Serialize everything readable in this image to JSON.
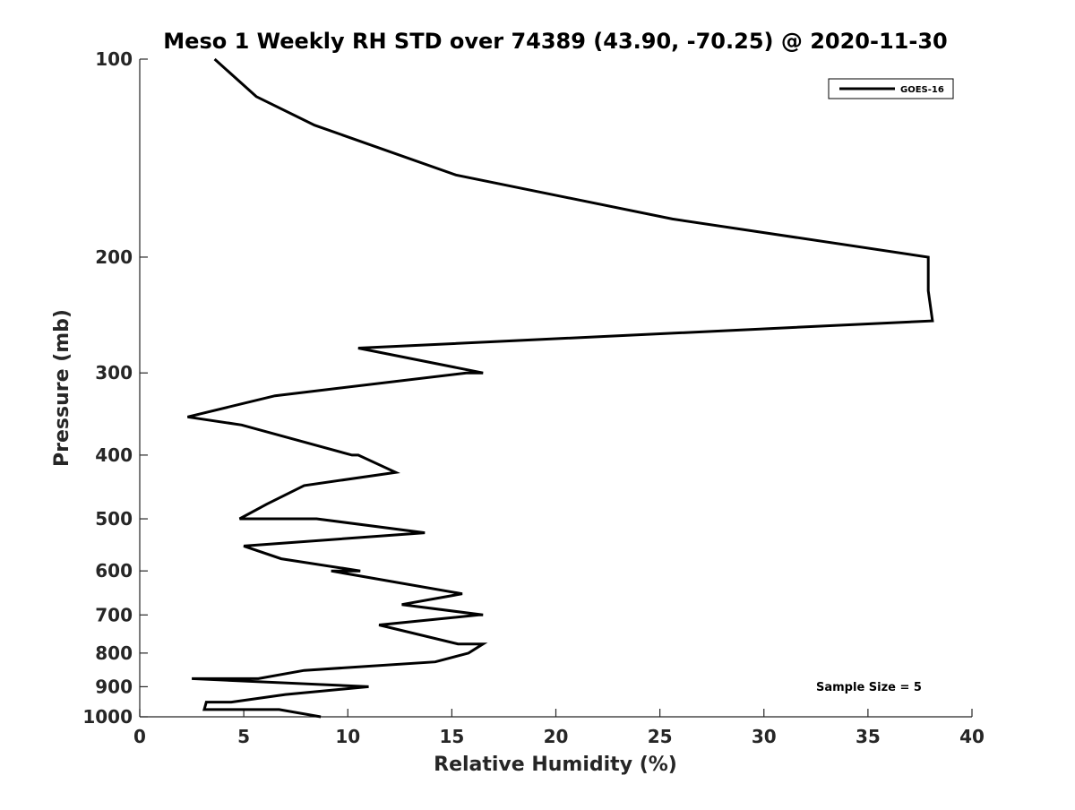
{
  "chart_data": {
    "type": "line",
    "title": "Meso 1 Weekly RH STD over 74389 (43.90, -70.25) @ 2020-11-30",
    "xlabel": "Relative Humidity (%)",
    "ylabel": "Pressure (mb)",
    "xlim": [
      0,
      40
    ],
    "ylim": [
      1000,
      100
    ],
    "y_scale": "log",
    "y_reversed": true,
    "x_ticks": [
      0,
      5,
      10,
      15,
      20,
      25,
      30,
      35,
      40
    ],
    "x_tick_labels": [
      "0",
      "5",
      "10",
      "15",
      "20",
      "25",
      "30",
      "35",
      "40"
    ],
    "y_ticks": [
      100,
      200,
      300,
      400,
      500,
      600,
      700,
      800,
      900,
      1000
    ],
    "y_tick_labels": [
      "100",
      "200",
      "300",
      "400",
      "500",
      "600",
      "700",
      "800",
      "900",
      "1000"
    ],
    "grid": false,
    "legend": {
      "position": "top-right",
      "entries": [
        "GOES-16"
      ]
    },
    "annotation": "Sample Size = 5",
    "series": [
      {
        "name": "GOES-16",
        "color": "#000000",
        "x": [
          3.6,
          5.6,
          8.4,
          15.2,
          25.6,
          37.9,
          37.9,
          38.1,
          10.5,
          16.5,
          15.7,
          6.5,
          2.3,
          4.9,
          10.2,
          10.5,
          12.3,
          7.9,
          6.1,
          4.8,
          8.5,
          13.7,
          5.0,
          6.8,
          10.6,
          9.2,
          15.5,
          12.6,
          16.5,
          16.3,
          11.5,
          15.3,
          16.5,
          15.8,
          14.2,
          7.9,
          5.7,
          2.5,
          11.0,
          7.0,
          4.4,
          3.2,
          3.1,
          6.7,
          8.7
        ],
        "y": [
          100,
          114,
          126,
          150,
          175,
          200,
          225,
          250,
          275,
          300,
          300,
          325,
          350,
          360,
          400,
          400,
          425,
          445,
          475,
          500,
          500,
          525,
          550,
          575,
          600,
          600,
          650,
          675,
          700,
          700,
          725,
          775,
          775,
          800,
          825,
          850,
          875,
          875,
          900,
          925,
          950,
          950,
          975,
          975,
          1000
        ]
      }
    ]
  }
}
